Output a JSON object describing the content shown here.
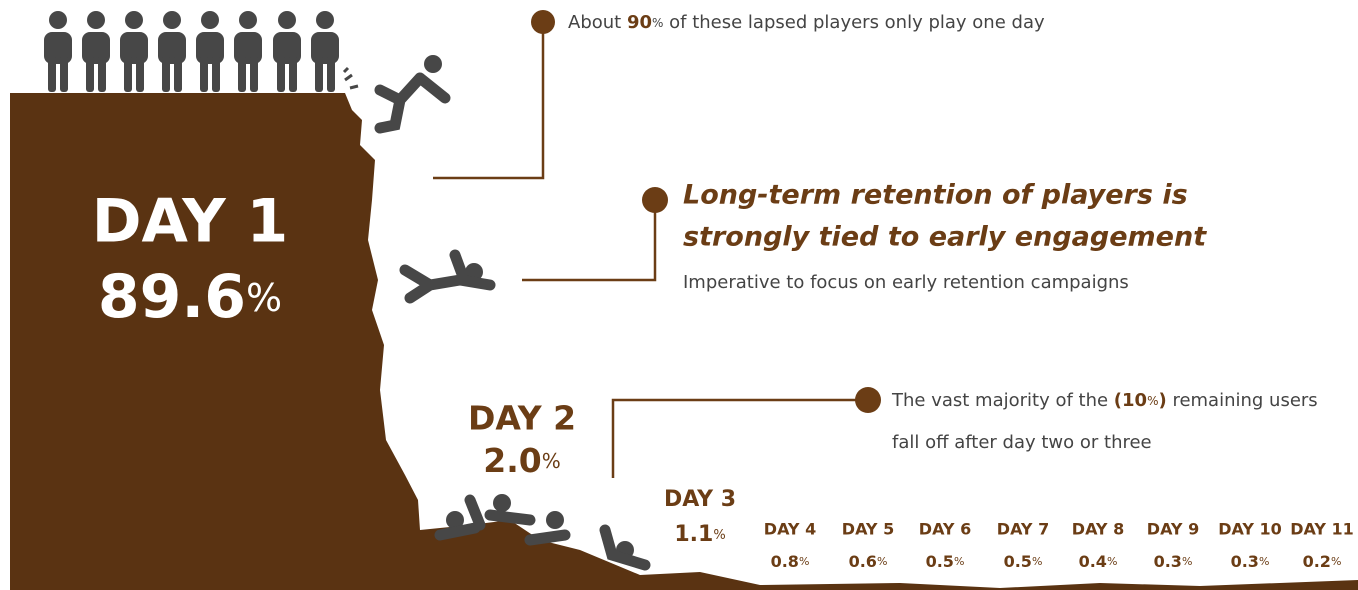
{
  "header": {
    "note_parts": [
      "About ",
      "90",
      "%",
      " of these lapsed players only play one day"
    ]
  },
  "callout": {
    "title_lines": [
      "Long-term retention of players is",
      "strongly tied to early engagement"
    ],
    "subtitle": "Imperative to focus on early retention campaigns"
  },
  "remaining_note": {
    "line1_parts": [
      "The vast majority of the ",
      "(10",
      "%",
      ")",
      " remaining users"
    ],
    "line2": "fall off after day two or three"
  },
  "days": [
    {
      "label": "DAY 1",
      "value": "89.6",
      "unit": "%"
    },
    {
      "label": "DAY 2",
      "value": "2.0",
      "unit": "%"
    },
    {
      "label": "DAY 3",
      "value": "1.1",
      "unit": "%"
    },
    {
      "label": "DAY 4",
      "value": "0.8",
      "unit": "%"
    },
    {
      "label": "DAY 5",
      "value": "0.6",
      "unit": "%"
    },
    {
      "label": "DAY 6",
      "value": "0.5",
      "unit": "%"
    },
    {
      "label": "DAY 7",
      "value": "0.5",
      "unit": "%"
    },
    {
      "label": "DAY 8",
      "value": "0.4",
      "unit": "%"
    },
    {
      "label": "DAY 9",
      "value": "0.3",
      "unit": "%"
    },
    {
      "label": "DAY 10",
      "value": "0.3",
      "unit": "%"
    },
    {
      "label": "DAY 11",
      "value": "0.2",
      "unit": "%"
    }
  ]
}
